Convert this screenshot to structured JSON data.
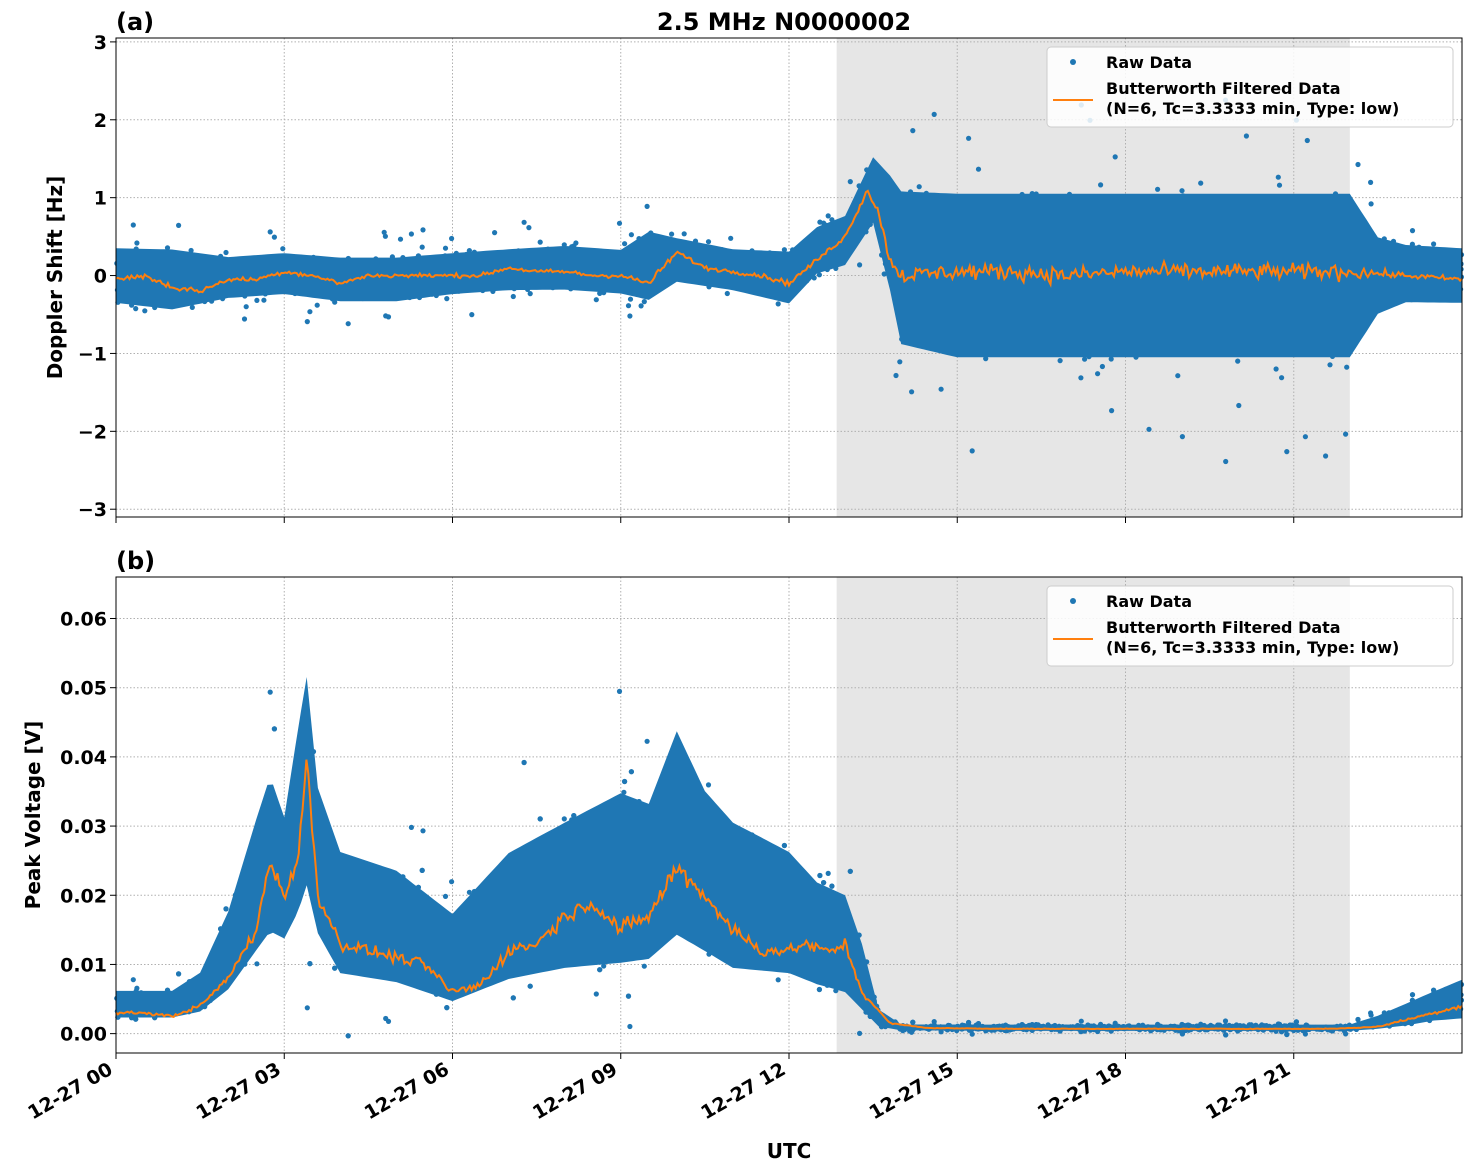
{
  "figure": {
    "title": "2.5 MHz N0000002",
    "xlabel": "UTC",
    "colors": {
      "raw": "#1f77b4",
      "filtered": "#ff7f0e",
      "shade": "#e6e6e6",
      "grid": "#b0b0b0"
    }
  },
  "chart_data": [
    {
      "type": "scatter",
      "panel_label": "(a)",
      "title": "2.5 MHz N0000002",
      "xlabel": "",
      "ylabel": "Doppler Shift [Hz]",
      "x_range_hours": [
        0,
        24
      ],
      "ylim": [
        -3.1,
        3.05
      ],
      "yticks": [
        -3,
        -2,
        -1,
        0,
        1,
        2,
        3
      ],
      "ytick_labels": [
        "−3",
        "−2",
        "−1",
        "0",
        "1",
        "2",
        "3"
      ],
      "xticks_hours": [
        3,
        6,
        9,
        12,
        15,
        18,
        21
      ],
      "grid": true,
      "shaded_interval_hours": [
        12.85,
        22.0
      ],
      "legend": {
        "placement": "top-right",
        "entries": [
          "Raw Data",
          "Butterworth Filtered Data",
          "(N=6, Tc=3.3333 min, Type: low)"
        ]
      },
      "series": [
        {
          "name": "Butterworth Filtered Data (N=6, Tc=3.3333 min, Type: low)",
          "kind": "line",
          "x_hours": [
            0,
            0.5,
            1,
            1.5,
            2,
            2.5,
            3,
            3.5,
            4,
            4.5,
            5,
            5.5,
            6,
            6.5,
            7,
            7.5,
            8,
            8.5,
            9,
            9.5,
            10,
            10.5,
            11,
            11.5,
            12,
            12.5,
            13,
            13.2,
            13.4,
            13.6,
            13.8,
            14,
            15,
            16,
            17,
            18,
            19,
            20,
            21,
            22,
            23,
            24
          ],
          "y": [
            -0.05,
            0.0,
            -0.15,
            -0.2,
            -0.05,
            -0.05,
            0.05,
            0.0,
            -0.1,
            0.0,
            0.0,
            0.0,
            0.0,
            0.0,
            0.1,
            0.05,
            0.05,
            0.0,
            0.0,
            -0.1,
            0.3,
            0.1,
            0.05,
            0.0,
            -0.1,
            0.2,
            0.5,
            0.8,
            1.1,
            0.8,
            0.2,
            0.0,
            0.05,
            0.05,
            0.0,
            0.05,
            0.05,
            0.05,
            0.05,
            0.05,
            0.0,
            -0.05
          ]
        },
        {
          "name": "Raw Data",
          "kind": "scatter-band",
          "x_hours": [
            0,
            1,
            2,
            3,
            4,
            5,
            6,
            7,
            8,
            9,
            9.5,
            10,
            11,
            12,
            12.5,
            13,
            13.5,
            13.8,
            14,
            15,
            16,
            17,
            18,
            19,
            20,
            21,
            22,
            22.5,
            23,
            24
          ],
          "y_low": [
            -0.5,
            -0.6,
            -0.4,
            -0.35,
            -0.45,
            -0.45,
            -0.35,
            -0.3,
            -0.3,
            -0.35,
            -0.5,
            -0.2,
            -0.3,
            -0.5,
            -0.1,
            0.0,
            0.5,
            -0.5,
            -1.3,
            -1.5,
            -1.5,
            -1.5,
            -1.5,
            -1.5,
            -1.5,
            -1.5,
            -1.5,
            -0.7,
            -0.5,
            -0.5
          ],
          "y_high": [
            0.5,
            0.5,
            0.35,
            0.4,
            0.35,
            0.35,
            0.4,
            0.45,
            0.5,
            0.45,
            0.75,
            0.6,
            0.45,
            0.45,
            0.75,
            0.9,
            1.7,
            1.6,
            1.5,
            1.5,
            1.5,
            1.5,
            1.5,
            1.5,
            1.5,
            1.5,
            1.5,
            0.7,
            0.55,
            0.5
          ]
        }
      ]
    },
    {
      "type": "scatter",
      "panel_label": "(b)",
      "title": "",
      "xlabel": "UTC",
      "ylabel": "Peak Voltage [V]",
      "x_range_hours": [
        0,
        24
      ],
      "ylim": [
        -0.0028,
        0.066
      ],
      "yticks": [
        0.0,
        0.01,
        0.02,
        0.03,
        0.04,
        0.05,
        0.06
      ],
      "ytick_labels": [
        "0.00",
        "0.01",
        "0.02",
        "0.03",
        "0.04",
        "0.05",
        "0.06"
      ],
      "xticks_hours": [
        0,
        3,
        6,
        9,
        12,
        15,
        18,
        21
      ],
      "xtick_labels": [
        "12-27 00",
        "12-27 03",
        "12-27 06",
        "12-27 09",
        "12-27 12",
        "12-27 15",
        "12-27 18",
        "12-27 21"
      ],
      "grid": true,
      "shaded_interval_hours": [
        12.85,
        22.0
      ],
      "legend": {
        "placement": "top-right",
        "entries": [
          "Raw Data",
          "Butterworth Filtered Data",
          "(N=6, Tc=3.3333 min, Type: low)"
        ]
      },
      "series": [
        {
          "name": "Butterworth Filtered Data (N=6, Tc=3.3333 min, Type: low)",
          "kind": "line",
          "x_hours": [
            0,
            0.5,
            1,
            1.5,
            2,
            2.5,
            2.75,
            3,
            3.25,
            3.4,
            3.6,
            4,
            4.5,
            5,
            5.5,
            6,
            6.5,
            7,
            7.5,
            8,
            8.5,
            9,
            9.5,
            10,
            10.5,
            11,
            11.5,
            12,
            12.3,
            12.6,
            12.8,
            13,
            13.3,
            13.8,
            14.5,
            16,
            18,
            20,
            21.5,
            22,
            22.5,
            23,
            23.5,
            24
          ],
          "y": [
            0.003,
            0.003,
            0.0025,
            0.004,
            0.008,
            0.015,
            0.025,
            0.02,
            0.025,
            0.04,
            0.02,
            0.013,
            0.012,
            0.011,
            0.01,
            0.006,
            0.007,
            0.012,
            0.013,
            0.017,
            0.019,
            0.015,
            0.017,
            0.024,
            0.02,
            0.015,
            0.012,
            0.012,
            0.013,
            0.012,
            0.012,
            0.013,
            0.006,
            0.0015,
            0.0008,
            0.0007,
            0.0007,
            0.0007,
            0.0007,
            0.0008,
            0.001,
            0.002,
            0.003,
            0.004
          ]
        },
        {
          "name": "Raw Data",
          "kind": "scatter-band",
          "x_hours": [
            0,
            1,
            1.5,
            2,
            2.5,
            2.75,
            3,
            3.25,
            3.4,
            3.6,
            4,
            5,
            6,
            7,
            8,
            9,
            9.5,
            10,
            10.5,
            11,
            12,
            12.5,
            13,
            13.3,
            13.6,
            14,
            16,
            20,
            22,
            22.5,
            23,
            23.5,
            24
          ],
          "y_low": [
            0.0015,
            0.0015,
            0.002,
            0.004,
            0.008,
            0.01,
            0.01,
            0.012,
            0.015,
            0.01,
            0.005,
            0.004,
            0.002,
            0.004,
            0.005,
            0.005,
            0.006,
            0.008,
            0.007,
            0.005,
            0.005,
            0.004,
            0.003,
            0.0015,
            0.0005,
            0.0003,
            0.0002,
            0.0002,
            0.0002,
            0.0003,
            0.0005,
            0.001,
            0.001
          ],
          "y_high": [
            0.007,
            0.007,
            0.01,
            0.02,
            0.035,
            0.042,
            0.035,
            0.05,
            0.058,
            0.04,
            0.03,
            0.027,
            0.02,
            0.03,
            0.035,
            0.04,
            0.038,
            0.05,
            0.04,
            0.035,
            0.03,
            0.025,
            0.023,
            0.015,
            0.004,
            0.0015,
            0.0015,
            0.0015,
            0.0015,
            0.003,
            0.005,
            0.007,
            0.009
          ]
        }
      ]
    }
  ]
}
